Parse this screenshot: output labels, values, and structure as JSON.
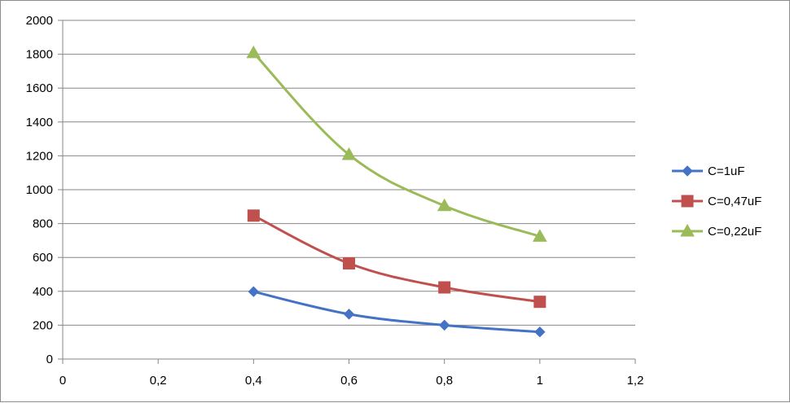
{
  "chart_data": {
    "type": "line",
    "smooth": true,
    "title": "",
    "xlabel": "",
    "ylabel": "",
    "xlim": [
      0,
      1.2
    ],
    "ylim": [
      0,
      2000
    ],
    "xticks": [
      0,
      0.2,
      0.4,
      0.6,
      0.8,
      1.0,
      1.2
    ],
    "xtick_labels": [
      "0",
      "0,2",
      "0,4",
      "0,6",
      "0,8",
      "1",
      "1,2"
    ],
    "yticks": [
      0,
      200,
      400,
      600,
      800,
      1000,
      1200,
      1400,
      1600,
      1800,
      2000
    ],
    "ytick_labels": [
      "0",
      "200",
      "400",
      "600",
      "800",
      "1000",
      "1200",
      "1400",
      "1600",
      "1800",
      "2000"
    ],
    "grid": "horizontal",
    "legend_position": "right",
    "series": [
      {
        "name": "C=1uF",
        "color": "#4472c4",
        "marker": "diamond",
        "x": [
          0.4,
          0.6,
          0.8,
          1.0
        ],
        "y": [
          398,
          265,
          200,
          160
        ]
      },
      {
        "name": "C=0,47uF",
        "color": "#c0504d",
        "marker": "square",
        "x": [
          0.4,
          0.6,
          0.8,
          1.0
        ],
        "y": [
          847,
          565,
          423,
          338
        ]
      },
      {
        "name": "C=0,22uF",
        "color": "#9bbb59",
        "marker": "triangle",
        "x": [
          0.4,
          0.6,
          0.8,
          1.0
        ],
        "y": [
          1808,
          1207,
          905,
          724
        ]
      }
    ]
  }
}
